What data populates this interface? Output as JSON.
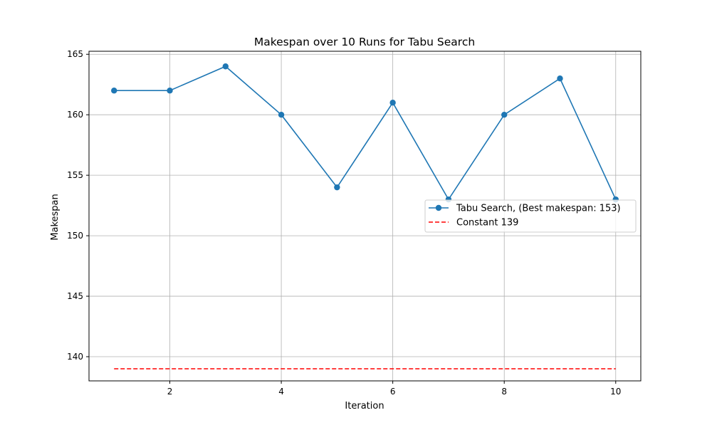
{
  "chart_data": {
    "type": "line",
    "title": "Makespan over 10 Runs for Tabu Search",
    "xlabel": "Iteration",
    "ylabel": "Makespan",
    "xlim": [
      0.55,
      10.45
    ],
    "ylim": [
      138.0,
      165.25
    ],
    "x_ticks": [
      2,
      4,
      6,
      8,
      10
    ],
    "y_ticks": [
      140,
      145,
      150,
      155,
      160,
      165
    ],
    "grid": true,
    "legend_placement": "center-right",
    "series": [
      {
        "name": "Tabu Search, (Best makespan: 153)",
        "style": "solid-marker",
        "color": "#1f77b4",
        "x": [
          1,
          2,
          3,
          4,
          5,
          6,
          7,
          8,
          9,
          10
        ],
        "y": [
          162,
          162,
          164,
          160,
          154,
          161,
          153,
          160,
          163,
          153
        ]
      },
      {
        "name": "Constant 139",
        "style": "dashed",
        "color": "#ff0000",
        "x": [
          1,
          10
        ],
        "y": [
          139,
          139
        ]
      }
    ]
  }
}
